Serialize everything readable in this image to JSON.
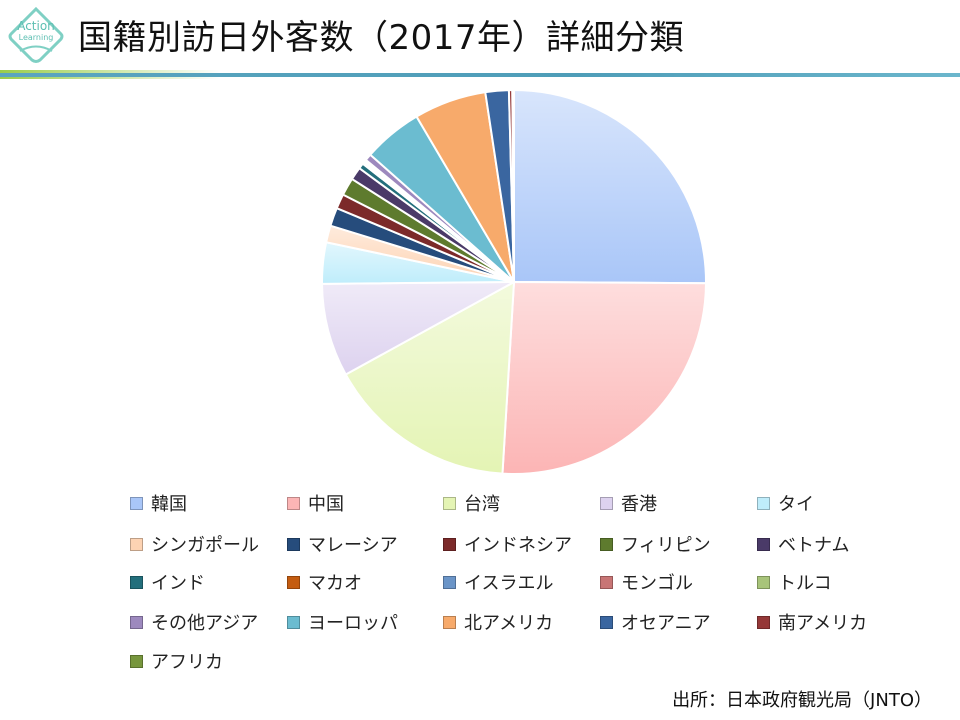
{
  "logo": {
    "line1": "Action",
    "line2": "Learning"
  },
  "header": {
    "title": "国籍別訪日外客数（2017年）詳細分類"
  },
  "source": "出所：日本政府観光局（JNTO）",
  "chart_data": {
    "type": "pie",
    "title": "国籍別訪日外客数（2017年）詳細分類",
    "start_angle": "12 o'clock",
    "direction": "clockwise",
    "legend_position": "bottom",
    "unit": "persons (approx.)",
    "categories": [
      "韓国",
      "中国",
      "台湾",
      "香港",
      "タイ",
      "シンガポール",
      "マレーシア",
      "インドネシア",
      "フィリピン",
      "ベトナム",
      "インド",
      "マカオ",
      "イスラエル",
      "モンゴル",
      "トルコ",
      "その他アジア",
      "ヨーロッパ",
      "北アメリカ",
      "オセアニア",
      "南アメリカ",
      "アフリカ"
    ],
    "values": [
      7140000,
      7356000,
      4564000,
      2232000,
      987000,
      404000,
      440000,
      352000,
      424000,
      309000,
      134000,
      40000,
      30000,
      25000,
      20000,
      160000,
      1420000,
      1730000,
      560000,
      80000,
      40000
    ],
    "colors": [
      "#a9c6f8",
      "#fcb5b5",
      "#e4f4b4",
      "#ddd2ef",
      "#bfedfb",
      "#fdd3b3",
      "#264c7c",
      "#7c2a2a",
      "#5e7b2e",
      "#4a3a68",
      "#236f7c",
      "#c45c10",
      "#6b95c8",
      "#c87575",
      "#a8c47a",
      "#9d89be",
      "#6bbcd0",
      "#f7aa6b",
      "#3a66a0",
      "#953838",
      "#77963d"
    ]
  }
}
